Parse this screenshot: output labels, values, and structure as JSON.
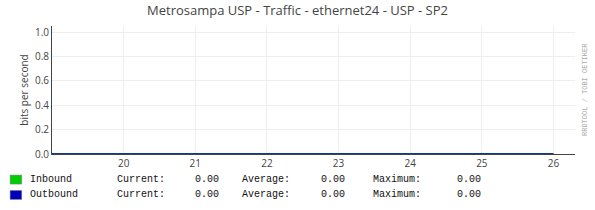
{
  "chart_data": {
    "type": "line",
    "title": "Metrosampa USP - Traffic - ethernet24 - USP - SP2",
    "ylabel": "bits per second",
    "x": [
      19,
      26
    ],
    "series": [
      {
        "name": "Inbound",
        "color": "#00cc00",
        "values": [
          0,
          0
        ],
        "stats": [
          0,
          0,
          0
        ],
        "stat_labels": [
          "0.00",
          "0.00",
          "0.00"
        ]
      },
      {
        "name": "Outbound",
        "color": "#0000bb",
        "values": [
          0,
          0
        ],
        "stats": [
          0,
          0,
          0
        ],
        "stat_labels": [
          "0.00",
          "0.00",
          "0.00"
        ]
      }
    ],
    "stat_names": [
      "Current:",
      "Average:",
      "Maximum:"
    ],
    "xlim": [
      19,
      26.3
    ],
    "ylim": [
      0,
      1.05
    ],
    "xticks": [
      20,
      21,
      22,
      23,
      24,
      25,
      26
    ],
    "yticks": [
      {
        "value": 0.0,
        "label": "0.0"
      },
      0.2,
      0.4,
      0.6,
      0.8,
      {
        "value": 1.0,
        "label": "1.0"
      }
    ],
    "grid": true,
    "annotations": [
      "RRDTOOL / TOBI OETIKER"
    ]
  }
}
